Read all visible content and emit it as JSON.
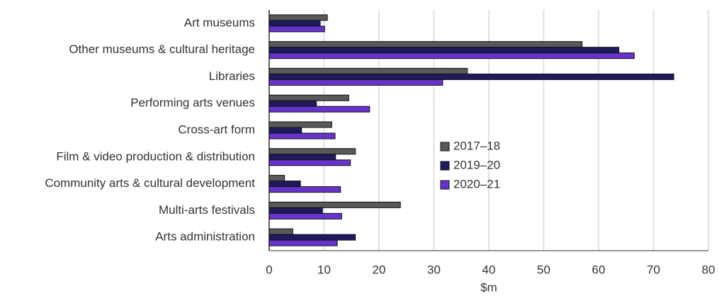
{
  "chart_data": {
    "type": "hbar",
    "xlabel": "$m",
    "categories": [
      "Art museums",
      "Other museums & cultural heritage",
      "Libraries",
      "Performing arts venues",
      "Cross-art form",
      "Film & video production & distribution",
      "Community arts & cultural development",
      "Multi-arts festivals",
      "Arts administration"
    ],
    "series": [
      {
        "name": "2017–18",
        "color": "#595959",
        "values": [
          10.6,
          57,
          36.1,
          14.5,
          11.4,
          15.7,
          2.8,
          23.9,
          4.3
        ]
      },
      {
        "name": "2019–20",
        "color": "#1f1a5c",
        "values": [
          9.3,
          63.7,
          73.7,
          8.6,
          5.9,
          12.1,
          5.7,
          9.7,
          15.7
        ]
      },
      {
        "name": "2020–21",
        "color": "#6633cc",
        "values": [
          10.1,
          66.5,
          31.6,
          18.3,
          12,
          14.8,
          13,
          13.2,
          12.4
        ]
      }
    ],
    "xlim": [
      0,
      80
    ],
    "xticks": [
      0,
      10,
      20,
      30,
      40,
      50,
      60,
      70,
      80
    ],
    "grid": true
  }
}
